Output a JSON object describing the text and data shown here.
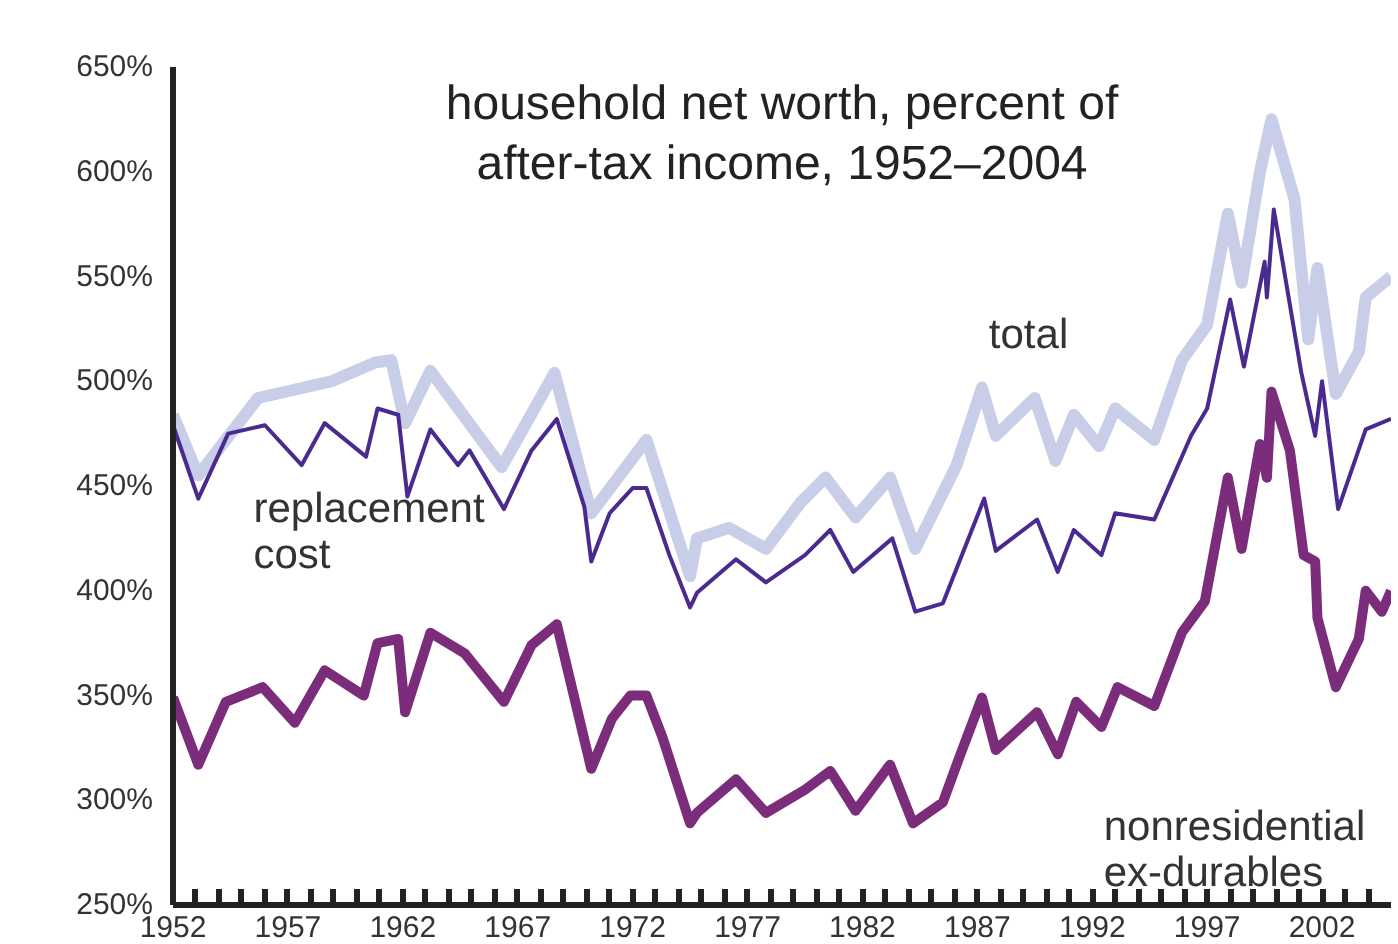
{
  "chart_data": {
    "type": "line",
    "title": "household net worth, percent of after-tax income, 1952–2004",
    "xlim": [
      1952,
      2005
    ],
    "ylim": [
      250,
      650
    ],
    "xticks": [
      {
        "value": 1952,
        "label": "1952"
      },
      {
        "value": 1953,
        "label": null
      },
      {
        "value": 1954,
        "label": null
      },
      {
        "value": 1955,
        "label": null
      },
      {
        "value": 1956,
        "label": null
      },
      {
        "value": 1957,
        "label": "1957"
      },
      {
        "value": 1958,
        "label": null
      },
      {
        "value": 1959,
        "label": null
      },
      {
        "value": 1960,
        "label": null
      },
      {
        "value": 1961,
        "label": null
      },
      {
        "value": 1962,
        "label": "1962"
      },
      {
        "value": 1963,
        "label": null
      },
      {
        "value": 1964,
        "label": null
      },
      {
        "value": 1965,
        "label": null
      },
      {
        "value": 1966,
        "label": null
      },
      {
        "value": 1967,
        "label": "1967"
      },
      {
        "value": 1968,
        "label": null
      },
      {
        "value": 1969,
        "label": null
      },
      {
        "value": 1970,
        "label": null
      },
      {
        "value": 1971,
        "label": null
      },
      {
        "value": 1972,
        "label": "1972"
      },
      {
        "value": 1973,
        "label": null
      },
      {
        "value": 1974,
        "label": null
      },
      {
        "value": 1975,
        "label": null
      },
      {
        "value": 1976,
        "label": null
      },
      {
        "value": 1977,
        "label": "1977"
      },
      {
        "value": 1978,
        "label": null
      },
      {
        "value": 1979,
        "label": null
      },
      {
        "value": 1980,
        "label": null
      },
      {
        "value": 1981,
        "label": null
      },
      {
        "value": 1982,
        "label": "1982"
      },
      {
        "value": 1983,
        "label": null
      },
      {
        "value": 1984,
        "label": null
      },
      {
        "value": 1985,
        "label": null
      },
      {
        "value": 1986,
        "label": null
      },
      {
        "value": 1987,
        "label": "1987"
      },
      {
        "value": 1988,
        "label": null
      },
      {
        "value": 1989,
        "label": null
      },
      {
        "value": 1990,
        "label": null
      },
      {
        "value": 1991,
        "label": null
      },
      {
        "value": 1992,
        "label": "1992"
      },
      {
        "value": 1993,
        "label": null
      },
      {
        "value": 1994,
        "label": null
      },
      {
        "value": 1995,
        "label": null
      },
      {
        "value": 1996,
        "label": null
      },
      {
        "value": 1997,
        "label": "1997"
      },
      {
        "value": 1998,
        "label": null
      },
      {
        "value": 1999,
        "label": null
      },
      {
        "value": 2000,
        "label": null
      },
      {
        "value": 2001,
        "label": null
      },
      {
        "value": 2002,
        "label": "2002"
      },
      {
        "value": 2003,
        "label": null
      },
      {
        "value": 2004,
        "label": null
      }
    ],
    "yticks": [
      {
        "value": 250,
        "label": "250%"
      },
      {
        "value": 300,
        "label": "300%"
      },
      {
        "value": 350,
        "label": "350%"
      },
      {
        "value": 400,
        "label": "400%"
      },
      {
        "value": 450,
        "label": "450%"
      },
      {
        "value": 500,
        "label": "500%"
      },
      {
        "value": 550,
        "label": "550%"
      },
      {
        "value": 600,
        "label": "600%"
      },
      {
        "value": 650,
        "label": "650%"
      }
    ],
    "series": [
      {
        "name": "total",
        "color": "#c8cde8",
        "x": [
          1952,
          1953.1,
          1955.7,
          1958.9,
          1960.8,
          1961.5,
          1962.1,
          1963.2,
          1966.3,
          1968.6,
          1970.2,
          1972.6,
          1974.5,
          1974.8,
          1976.2,
          1977.8,
          1979.3,
          1980.4,
          1981.7,
          1983.2,
          1984.3,
          1986.1,
          1987.2,
          1987.8,
          1989.5,
          1990.4,
          1991.2,
          1992.3,
          1993,
          1994.7,
          1995.9,
          1997,
          1997.9,
          1998.5,
          1999.3,
          1999.8,
          2000.8,
          2001.4,
          2001.8,
          2002.6,
          2003.6,
          2003.9,
          2005
        ],
        "values": [
          484,
          455,
          492,
          500,
          509,
          510,
          480,
          505,
          459,
          504,
          437,
          472,
          407,
          425,
          430,
          420,
          442,
          454,
          435,
          454,
          420,
          460,
          497,
          474,
          492,
          462,
          484,
          469,
          487,
          472,
          510,
          527,
          580,
          547,
          600,
          625,
          587,
          520,
          554,
          494,
          514,
          540,
          550
        ]
      },
      {
        "name": "replacement cost",
        "color": "#4b2a8f",
        "x": [
          1952,
          1953.1,
          1954.4,
          1956,
          1957.6,
          1958.6,
          1960.4,
          1960.9,
          1961.8,
          1962.2,
          1963.2,
          1964.4,
          1964.9,
          1966.4,
          1967.6,
          1968.7,
          1969.9,
          1970.2,
          1971,
          1972,
          1972.6,
          1973.6,
          1974.5,
          1974.8,
          1976.5,
          1977.8,
          1979.5,
          1980.6,
          1981.6,
          1983.3,
          1984.3,
          1985.5,
          1987.3,
          1987.8,
          1989.6,
          1990.5,
          1991.2,
          1992.4,
          1993,
          1994.7,
          1996.3,
          1997,
          1998,
          1998.6,
          1999.5,
          1999.6,
          1999.9,
          2001.1,
          2001.7,
          2002,
          2002.7,
          2003.9,
          2005
        ],
        "values": [
          479,
          444,
          475,
          479,
          460,
          480,
          464,
          487,
          484,
          445,
          477,
          460,
          467,
          439,
          467,
          482,
          440,
          414,
          437,
          449,
          449,
          417,
          392,
          399,
          415,
          404,
          417,
          429,
          409,
          425,
          390,
          394,
          444,
          419,
          434,
          409,
          429,
          417,
          437,
          434,
          474,
          487,
          539,
          507,
          557,
          540,
          582,
          504,
          474,
          500,
          439,
          477,
          482
        ]
      },
      {
        "name": "nonresidential ex-durables",
        "color": "#7b2d7b",
        "x": [
          1952,
          1953.1,
          1954.3,
          1955.9,
          1957.3,
          1958.6,
          1960.3,
          1960.9,
          1961.8,
          1962.1,
          1963.2,
          1964.7,
          1966.4,
          1967.6,
          1968.7,
          1970.2,
          1971.1,
          1971.9,
          1972.6,
          1973.3,
          1974.5,
          1974.8,
          1976.5,
          1977.8,
          1979.5,
          1980.6,
          1981.7,
          1983.2,
          1984.2,
          1985.5,
          1986.2,
          1987.2,
          1987.8,
          1989.6,
          1990.5,
          1991.3,
          1992.4,
          1993.1,
          1994.7,
          1995.9,
          1996.9,
          1997.9,
          1998.5,
          1999.3,
          1999.6,
          1999.8,
          2000.6,
          2001.2,
          2001.7,
          2001.8,
          2002.6,
          2003.6,
          2003.9,
          2004.6,
          2005
        ],
        "values": [
          349,
          317,
          347,
          354,
          337,
          362,
          350,
          375,
          377,
          342,
          380,
          370,
          347,
          374,
          384,
          315,
          339,
          350,
          350,
          330,
          289,
          294,
          310,
          294,
          305,
          314,
          295,
          317,
          289,
          299,
          320,
          349,
          324,
          342,
          322,
          347,
          335,
          354,
          345,
          380,
          395,
          454,
          420,
          470,
          454,
          495,
          467,
          417,
          414,
          387,
          354,
          377,
          400,
          390,
          400
        ]
      }
    ]
  }
}
